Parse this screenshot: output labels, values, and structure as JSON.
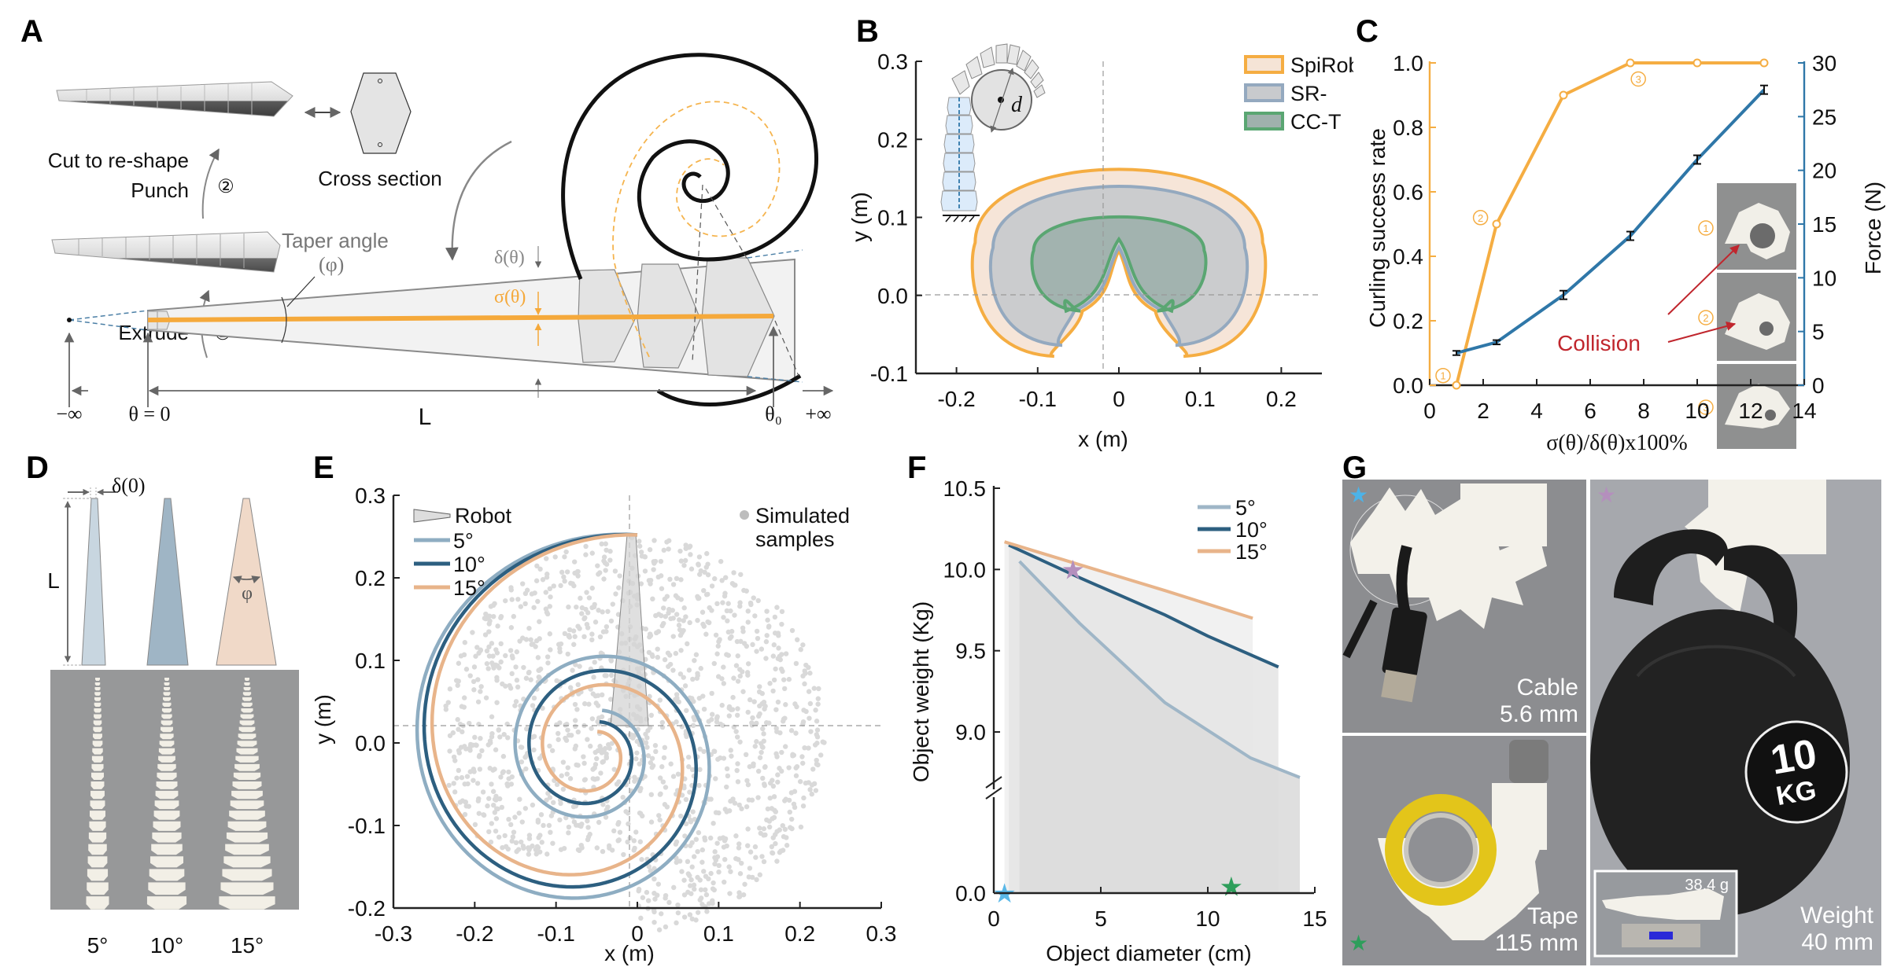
{
  "panel_labels": [
    "A",
    "B",
    "C",
    "D",
    "E",
    "F",
    "G"
  ],
  "panelA": {
    "step1_label": "Extrude",
    "step1_num": "①",
    "step2_label_line1": "Cut to re-shape",
    "step2_label_line2": "Punch",
    "step2_num": "②",
    "cross_section_label": "Cross section",
    "taper_angle_label": "Taper angle",
    "phi_label": "(φ)",
    "delta_label": "δ(θ)",
    "sigma_label": "σ(θ)",
    "neg_inf_label": "−∞",
    "theta_zero_label": "θ = 0",
    "length_label": "L",
    "theta0_label": "θ₀",
    "pos_inf_label": "+∞",
    "colors": {
      "sigma": "#f5a93b",
      "outline": "#8a8a8a",
      "spiral": "#111111",
      "dashed_spiral": "#f5b44e"
    }
  },
  "chart_data": [
    {
      "id": "B",
      "type": "area",
      "title": "",
      "xlabel": "x (m)",
      "ylabel": "y (m)",
      "xlim": [
        -0.25,
        0.25
      ],
      "ylim": [
        -0.1,
        0.3
      ],
      "xticks": [
        "-0.2",
        "-0.1",
        "0",
        "0.1",
        "0.2"
      ],
      "xtick_values": [
        -0.2,
        -0.1,
        0,
        0.1,
        0.2
      ],
      "yticks": [
        "-0.1",
        "0.0",
        "0.1",
        "0.2",
        "0.3"
      ],
      "ytick_values": [
        -0.1,
        0.0,
        0.1,
        0.2,
        0.3
      ],
      "legend_position": "top-right",
      "inset_label": "d",
      "series": [
        {
          "name": "SpiRob",
          "stroke": "#f5ad42",
          "fill": "#f5e4d6",
          "outer_radius_x": 0.177,
          "top_y": 0.193,
          "bottom_y": -0.078,
          "inner_peak_y": 0.058
        },
        {
          "name": "SR-",
          "stroke": "#94a9bf",
          "fill": "#c8cacd",
          "outer_radius_x": 0.155,
          "top_y": 0.166,
          "bottom_y": -0.064,
          "inner_peak_y": 0.062
        },
        {
          "name": "CC-T",
          "stroke": "#5aa672",
          "fill": "#9fb1ad",
          "outer_radius_x": 0.105,
          "top_y": 0.115,
          "bottom_y": -0.02,
          "inner_peak_y": 0.072
        }
      ]
    },
    {
      "id": "C",
      "type": "line",
      "title": "",
      "xlabel": "σ(θ)/δ(θ)x100%",
      "ylabel": "Curling success rate",
      "y2label": "Force (N)",
      "xlim": [
        0,
        14
      ],
      "ylim": [
        0,
        1.0
      ],
      "y2lim": [
        0,
        30
      ],
      "xticks": [
        "0",
        "2",
        "4",
        "6",
        "8",
        "10",
        "12",
        "14"
      ],
      "xtick_values": [
        0,
        2,
        4,
        6,
        8,
        10,
        12,
        14
      ],
      "yticks": [
        "0.0",
        "0.2",
        "0.4",
        "0.6",
        "0.8",
        "1.0"
      ],
      "ytick_values": [
        0,
        0.2,
        0.4,
        0.6,
        0.8,
        1.0
      ],
      "y2ticks": [
        "0",
        "5",
        "10",
        "15",
        "20",
        "25",
        "30"
      ],
      "y2tick_values": [
        0,
        5,
        10,
        15,
        20,
        25,
        30
      ],
      "series": [
        {
          "name": "Curling success rate",
          "axis": "left",
          "color": "#f5ad42",
          "x": [
            1,
            2.5,
            5,
            7.5,
            10,
            12.5
          ],
          "y": [
            0.0,
            0.5,
            0.9,
            1.0,
            1.0,
            1.0
          ]
        },
        {
          "name": "Force",
          "axis": "right",
          "color": "#2f77a8",
          "x": [
            1,
            2.5,
            5,
            7.5,
            10,
            12.5
          ],
          "y": [
            3.0,
            4.0,
            8.4,
            13.9,
            21.0,
            27.5
          ],
          "err": [
            0.2,
            0.2,
            0.4,
            0.4,
            0.4,
            0.4
          ]
        }
      ],
      "annotations": [
        {
          "text": "①",
          "x": 0.5,
          "y": 0.03
        },
        {
          "text": "②",
          "x": 1.9,
          "y": 0.52
        },
        {
          "text": "③",
          "x": 7.8,
          "y": 0.95
        },
        {
          "text": "Collision",
          "color": "#c0262d"
        }
      ],
      "inset_labels": [
        "①",
        "②",
        "③"
      ]
    },
    {
      "id": "E",
      "type": "line",
      "title": "",
      "xlabel": "x (m)",
      "ylabel": "y (m)",
      "xlim": [
        -0.3,
        0.3
      ],
      "ylim": [
        -0.2,
        0.3
      ],
      "xticks": [
        "-0.3",
        "-0.2",
        "-0.1",
        "0",
        "0.1",
        "0.2",
        "0.3"
      ],
      "xtick_values": [
        -0.3,
        -0.2,
        -0.1,
        0,
        0.1,
        0.2,
        0.3
      ],
      "yticks": [
        "-0.2",
        "-0.1",
        "0.0",
        "0.1",
        "0.2",
        "0.3"
      ],
      "ytick_values": [
        -0.2,
        -0.1,
        0.0,
        0.1,
        0.2,
        0.3
      ],
      "legend": [
        "Robot",
        "5°",
        "10°",
        "15°"
      ],
      "legend_position": "top-left",
      "scatter_legend": "Simulated samples",
      "scatter_legend_position": "top-right",
      "series": [
        {
          "name": "5°",
          "color": "#8eadc2",
          "taper_deg": 5,
          "spiral_b": 0.13
        },
        {
          "name": "10°",
          "color": "#2d5f80",
          "taper_deg": 10,
          "spiral_b": 0.155
        },
        {
          "name": "15°",
          "color": "#e8b48a",
          "taper_deg": 15,
          "spiral_b": 0.185
        }
      ],
      "scatter": {
        "name": "Simulated samples",
        "color": "#d9d9d9",
        "count": 1500,
        "region_radius": 0.235
      }
    },
    {
      "id": "F",
      "type": "line",
      "title": "",
      "xlabel": "Object diameter (cm)",
      "ylabel": "Object weight (Kg)",
      "xlim": [
        0,
        15
      ],
      "ylim": [
        8.7,
        10.5
      ],
      "y_axis_break": true,
      "xticks": [
        "0",
        "5",
        "10",
        "15"
      ],
      "xtick_values": [
        0,
        5,
        10,
        15
      ],
      "yticks": [
        "0.0",
        "9.0",
        "9.5",
        "10.0",
        "10.5"
      ],
      "ytick_values": [
        0.0,
        9.0,
        9.5,
        10.0,
        10.5
      ],
      "legend_position": "top-right",
      "series": [
        {
          "name": "5°",
          "color": "#9fb6c7",
          "x": [
            1.2,
            4,
            8,
            12,
            14.3
          ],
          "y": [
            10.05,
            9.67,
            9.18,
            8.84,
            8.72
          ]
        },
        {
          "name": "10°",
          "color": "#2d5f80",
          "x": [
            0.7,
            4,
            8,
            10,
            13.3
          ],
          "y": [
            10.15,
            9.95,
            9.72,
            9.59,
            9.4
          ]
        },
        {
          "name": "15°",
          "color": "#e8b48a",
          "x": [
            0.5,
            4,
            8,
            12.1
          ],
          "y": [
            10.17,
            10.03,
            9.87,
            9.7
          ]
        }
      ],
      "markers": [
        {
          "shape": "star",
          "color": "#5ab8e8",
          "x": 0.5,
          "y": 0.0
        },
        {
          "shape": "star",
          "color": "#b48fbd",
          "x": 3.7,
          "y": 10.0
        },
        {
          "shape": "star",
          "color": "#2e9e5b",
          "x": 11.1,
          "y": 0.07
        }
      ]
    }
  ],
  "panelD": {
    "delta_label": "δ(0)",
    "length_label": "L",
    "phi_label": "φ",
    "angle_labels": [
      "5°",
      "10°",
      "15°"
    ],
    "colors": [
      "#c8d6e0",
      "#9fb5c5",
      "#f0d9c8"
    ]
  },
  "panelG": {
    "photos": [
      {
        "caption_line1": "Cable",
        "caption_line2": "5.6 mm",
        "star_color": "#4cb3e8"
      },
      {
        "caption_line1": "Tape",
        "caption_line2": "115 mm",
        "star_color": "#2e9e5b"
      },
      {
        "caption_line1": "Weight",
        "caption_line2": "40 mm",
        "star_color": "#b48fbd",
        "kettlebell_label_line1": "10",
        "kettlebell_label_line2": "KG",
        "inset_scale_reading": "38.4 g"
      }
    ]
  }
}
